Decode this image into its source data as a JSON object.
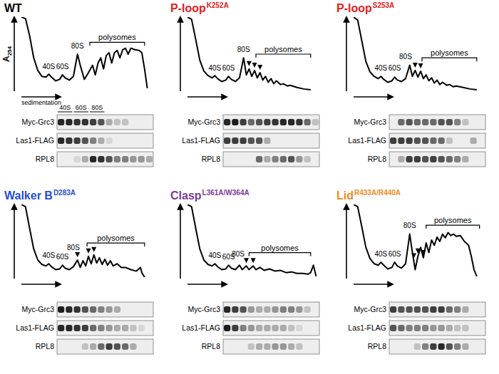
{
  "chart_data": [
    {
      "type": "line",
      "title": "WT",
      "color": "#000000",
      "y_label": "A254",
      "x_label": "sedimentation",
      "xlim": [
        0,
        100
      ],
      "ylim": [
        0,
        100
      ],
      "tick_labels": false,
      "x": [
        0,
        3,
        6,
        9,
        12,
        15,
        18,
        20,
        22,
        25,
        28,
        30,
        32,
        35,
        38,
        41,
        43,
        46,
        49,
        52,
        54,
        56,
        58,
        60,
        62,
        64,
        66,
        68,
        70,
        72,
        74,
        76,
        78,
        80,
        83,
        86,
        88,
        90,
        92
      ],
      "values": [
        100,
        98,
        75,
        45,
        28,
        20,
        19,
        23,
        19,
        14,
        16,
        22,
        18,
        15,
        20,
        50,
        35,
        16,
        25,
        35,
        22,
        38,
        45,
        30,
        48,
        52,
        38,
        52,
        55,
        45,
        56,
        58,
        50,
        58,
        56,
        55,
        52,
        30,
        4
      ],
      "annotations": [
        {
          "text": "40S",
          "x": 20,
          "y": 30
        },
        {
          "text": "60S",
          "x": 30,
          "y": 30
        },
        {
          "text": "80S",
          "x": 41,
          "y": 58
        }
      ],
      "bracket": {
        "text": "polysomes",
        "x": [
          50,
          90
        ],
        "y": 66
      },
      "lane_labels": [
        {
          "text": "40S",
          "lanes": [
            0,
            1
          ]
        },
        {
          "text": "60S",
          "lanes": [
            2,
            3
          ]
        },
        {
          "text": "80S",
          "lanes": [
            4,
            5
          ]
        }
      ],
      "blots": [
        {
          "label": "Myc-Grc3",
          "values": [
            0.9,
            0.9,
            0.85,
            0.85,
            0.8,
            0.7,
            0.3,
            0.2,
            0.2,
            0,
            0,
            0
          ]
        },
        {
          "label": "Las1-FLAG",
          "values": [
            0.9,
            0.85,
            0.8,
            0.7,
            0.5,
            0.3,
            0.1,
            0,
            0,
            0,
            0,
            0
          ]
        },
        {
          "label": "RPL8",
          "values": [
            0,
            0,
            0.1,
            0.3,
            0.9,
            0.85,
            0.7,
            0.5,
            0.5,
            0.4,
            0.4,
            0.3
          ]
        }
      ]
    },
    {
      "type": "line",
      "title": "P-loop",
      "subtitle": "K252A",
      "color": "#e3201b",
      "xlim": [
        0,
        100
      ],
      "ylim": [
        0,
        100
      ],
      "tick_labels": false,
      "x": [
        0,
        3,
        6,
        9,
        12,
        15,
        18,
        20,
        22,
        25,
        28,
        30,
        32,
        35,
        38,
        41,
        43,
        45,
        47,
        49,
        51,
        53,
        55,
        57,
        59,
        61,
        63,
        65,
        68,
        70,
        73,
        75,
        80,
        85,
        90
      ],
      "values": [
        100,
        97,
        70,
        42,
        27,
        21,
        18,
        21,
        17,
        13,
        15,
        20,
        16,
        13,
        18,
        45,
        22,
        30,
        20,
        28,
        18,
        25,
        15,
        20,
        12,
        17,
        10,
        14,
        9,
        10,
        7,
        8,
        5,
        3,
        2
      ],
      "annotations": [
        {
          "text": "40S",
          "x": 20,
          "y": 28
        },
        {
          "text": "60S",
          "x": 30,
          "y": 28
        },
        {
          "text": "80S",
          "x": 41,
          "y": 53
        }
      ],
      "bracket": {
        "text": "polysomes",
        "x": [
          50,
          90
        ],
        "y": 50
      },
      "arrowheads": [
        45,
        49,
        53
      ],
      "blots": [
        {
          "label": "Myc-Grc3",
          "values": [
            0.9,
            0.95,
            0.8,
            0.6,
            0.7,
            0.8,
            0.85,
            0.9,
            0.9,
            0.85,
            0.6,
            0.2
          ]
        },
        {
          "label": "Las1-FLAG",
          "values": [
            0.8,
            0.8,
            0.8,
            0.7,
            0.7,
            0.3,
            0,
            0,
            0,
            0,
            0,
            0
          ]
        },
        {
          "label": "RPL8",
          "values": [
            0,
            0,
            0,
            0,
            0.6,
            0.3,
            0.5,
            0.6,
            0.7,
            0.4,
            0.2,
            0
          ]
        }
      ]
    },
    {
      "type": "line",
      "title": "P-loop",
      "subtitle": "S253A",
      "color": "#e3201b",
      "xlim": [
        0,
        100
      ],
      "ylim": [
        0,
        100
      ],
      "tick_labels": false,
      "x": [
        0,
        3,
        6,
        9,
        12,
        15,
        18,
        20,
        22,
        25,
        28,
        30,
        32,
        35,
        38,
        41,
        43,
        45,
        47,
        49,
        51,
        53,
        55,
        57,
        59,
        61,
        63,
        65,
        68,
        70,
        73,
        75,
        80,
        85,
        90
      ],
      "values": [
        100,
        96,
        68,
        40,
        26,
        20,
        17,
        20,
        16,
        12,
        14,
        19,
        15,
        13,
        17,
        35,
        20,
        28,
        19,
        27,
        17,
        22,
        14,
        18,
        11,
        15,
        9,
        12,
        8,
        9,
        6,
        7,
        5,
        3,
        2
      ],
      "annotations": [
        {
          "text": "40S",
          "x": 20,
          "y": 28
        },
        {
          "text": "60S",
          "x": 30,
          "y": 28
        },
        {
          "text": "80S",
          "x": 38,
          "y": 43
        }
      ],
      "bracket": {
        "text": "polysomes",
        "x": [
          50,
          90
        ],
        "y": 45
      },
      "arrowheads": [
        45,
        49
      ],
      "blots": [
        {
          "label": "Myc-Grc3",
          "values": [
            0,
            0.6,
            0.7,
            0.6,
            0.6,
            0.6,
            0.7,
            0.7,
            0.5,
            0.2,
            0,
            0
          ]
        },
        {
          "label": "Las1-FLAG",
          "values": [
            0.8,
            0.8,
            0.8,
            0.7,
            0.7,
            0.6,
            0.6,
            0.2,
            0,
            0,
            0.3,
            0
          ]
        },
        {
          "label": "RPL8",
          "values": [
            0,
            0.3,
            0.8,
            0.8,
            0.7,
            0.8,
            0.7,
            0.6,
            0.5,
            0.3,
            0,
            0
          ]
        }
      ]
    },
    {
      "type": "line",
      "title": "Walker B",
      "subtitle": "D283A",
      "color": "#1f4fd0",
      "xlim": [
        0,
        100
      ],
      "ylim": [
        0,
        100
      ],
      "tick_labels": false,
      "x": [
        0,
        3,
        6,
        9,
        12,
        15,
        18,
        20,
        22,
        25,
        28,
        30,
        32,
        35,
        38,
        41,
        43,
        45,
        47,
        49,
        51,
        53,
        55,
        57,
        59,
        61,
        63,
        65,
        67,
        70,
        73,
        76,
        80,
        84,
        87,
        88,
        90
      ],
      "values": [
        100,
        97,
        68,
        40,
        25,
        19,
        17,
        20,
        16,
        12,
        13,
        18,
        14,
        12,
        16,
        25,
        15,
        24,
        17,
        30,
        20,
        32,
        21,
        28,
        19,
        26,
        18,
        24,
        17,
        20,
        15,
        15,
        12,
        10,
        15,
        8,
        2
      ],
      "annotations": [
        {
          "text": "40S",
          "x": 20,
          "y": 28
        },
        {
          "text": "60S",
          "x": 30,
          "y": 26
        },
        {
          "text": "80S",
          "x": 38,
          "y": 38
        }
      ],
      "bracket": {
        "text": "polysomes",
        "x": [
          48,
          90
        ],
        "y": 48
      },
      "arrowheads": [
        41,
        49,
        53
      ],
      "blots": [
        {
          "label": "Myc-Grc3",
          "values": [
            0.95,
            0.9,
            0.85,
            0.7,
            0.6,
            0.5,
            0.4,
            0.3,
            0,
            0,
            0,
            0
          ]
        },
        {
          "label": "Las1-FLAG",
          "values": [
            0.9,
            0.9,
            0.85,
            0.8,
            0.6,
            0.5,
            0.4,
            0.3,
            0.3,
            0.2,
            0.1,
            0
          ]
        },
        {
          "label": "RPL8",
          "values": [
            0,
            0,
            0,
            0.2,
            0.3,
            0.6,
            0.8,
            0.7,
            0.6,
            0.3,
            0,
            0
          ]
        }
      ]
    },
    {
      "type": "line",
      "title": "Clasp",
      "subtitle": "L361A/W364A",
      "color": "#7a3d9a",
      "xlim": [
        0,
        100
      ],
      "ylim": [
        0,
        100
      ],
      "tick_labels": false,
      "x": [
        0,
        3,
        6,
        9,
        12,
        15,
        18,
        20,
        22,
        25,
        28,
        30,
        32,
        35,
        38,
        40,
        43,
        45,
        48,
        50,
        53,
        56,
        60,
        64,
        68,
        72,
        76,
        80,
        84,
        88,
        90,
        92,
        94
      ],
      "values": [
        100,
        97,
        68,
        40,
        25,
        19,
        17,
        20,
        16,
        12,
        13,
        18,
        14,
        12,
        18,
        12,
        17,
        12,
        17,
        12,
        15,
        11,
        13,
        10,
        11,
        8,
        9,
        7,
        7,
        6,
        8,
        18,
        3
      ],
      "annotations": [
        {
          "text": "40S",
          "x": 20,
          "y": 28
        },
        {
          "text": "60S",
          "x": 30,
          "y": 26
        },
        {
          "text": "80S",
          "x": 37,
          "y": 30
        }
      ],
      "bracket": {
        "text": "polysomes",
        "x": [
          45,
          90
        ],
        "y": 35
      },
      "arrowheads": [
        43,
        48
      ],
      "blots": [
        {
          "label": "Myc-Grc3",
          "values": [
            0.9,
            0.8,
            0.7,
            0.4,
            0.3,
            0.3,
            0.4,
            0.5,
            0.5,
            0.4,
            0.2,
            0
          ]
        },
        {
          "label": "Las1-FLAG",
          "values": [
            0.95,
            0.8,
            0.5,
            0.4,
            0.3,
            0.3,
            0.3,
            0.3,
            0.2,
            0.1,
            0,
            0
          ]
        },
        {
          "label": "RPL8",
          "values": [
            0,
            0,
            0,
            0.2,
            0.3,
            0.3,
            0.4,
            0.4,
            0.3,
            0.2,
            0,
            0
          ]
        }
      ]
    },
    {
      "type": "line",
      "title": "Lid",
      "subtitle": "R433A/R440A",
      "color": "#f08a24",
      "xlim": [
        0,
        100
      ],
      "ylim": [
        0,
        100
      ],
      "tick_labels": false,
      "x": [
        0,
        3,
        6,
        9,
        12,
        15,
        18,
        20,
        22,
        25,
        28,
        30,
        32,
        35,
        38,
        41,
        43,
        45,
        47,
        49,
        51,
        53,
        55,
        57,
        59,
        61,
        63,
        65,
        67,
        69,
        71,
        73,
        75,
        78,
        81,
        84,
        86,
        88,
        90
      ],
      "values": [
        100,
        97,
        70,
        42,
        27,
        20,
        18,
        22,
        18,
        13,
        15,
        22,
        17,
        14,
        20,
        60,
        35,
        12,
        30,
        42,
        28,
        48,
        35,
        52,
        45,
        56,
        50,
        60,
        55,
        62,
        58,
        60,
        57,
        58,
        50,
        45,
        30,
        12,
        3
      ],
      "annotations": [
        {
          "text": "40S",
          "x": 20,
          "y": 30
        },
        {
          "text": "60S",
          "x": 30,
          "y": 30
        },
        {
          "text": "80S",
          "x": 41,
          "y": 68
        }
      ],
      "bracket": {
        "text": "polysomes",
        "x": [
          53,
          92
        ],
        "y": 72
      },
      "arrowheads": [
        44,
        47,
        51
      ],
      "blots": [
        {
          "label": "Myc-Grc3",
          "values": [
            0.8,
            0.7,
            0.7,
            0.7,
            0.7,
            0.8,
            0.8,
            0.6,
            0.5,
            0.3,
            0,
            0
          ]
        },
        {
          "label": "Las1-FLAG",
          "values": [
            0.7,
            0.6,
            0.5,
            0.5,
            0.5,
            0.4,
            0.4,
            0.3,
            0.2,
            0.2,
            0,
            0
          ]
        },
        {
          "label": "RPL8",
          "values": [
            0,
            0,
            0,
            0.2,
            0.5,
            0.8,
            0.9,
            0.7,
            0.5,
            0.3,
            0,
            0
          ]
        }
      ]
    }
  ]
}
